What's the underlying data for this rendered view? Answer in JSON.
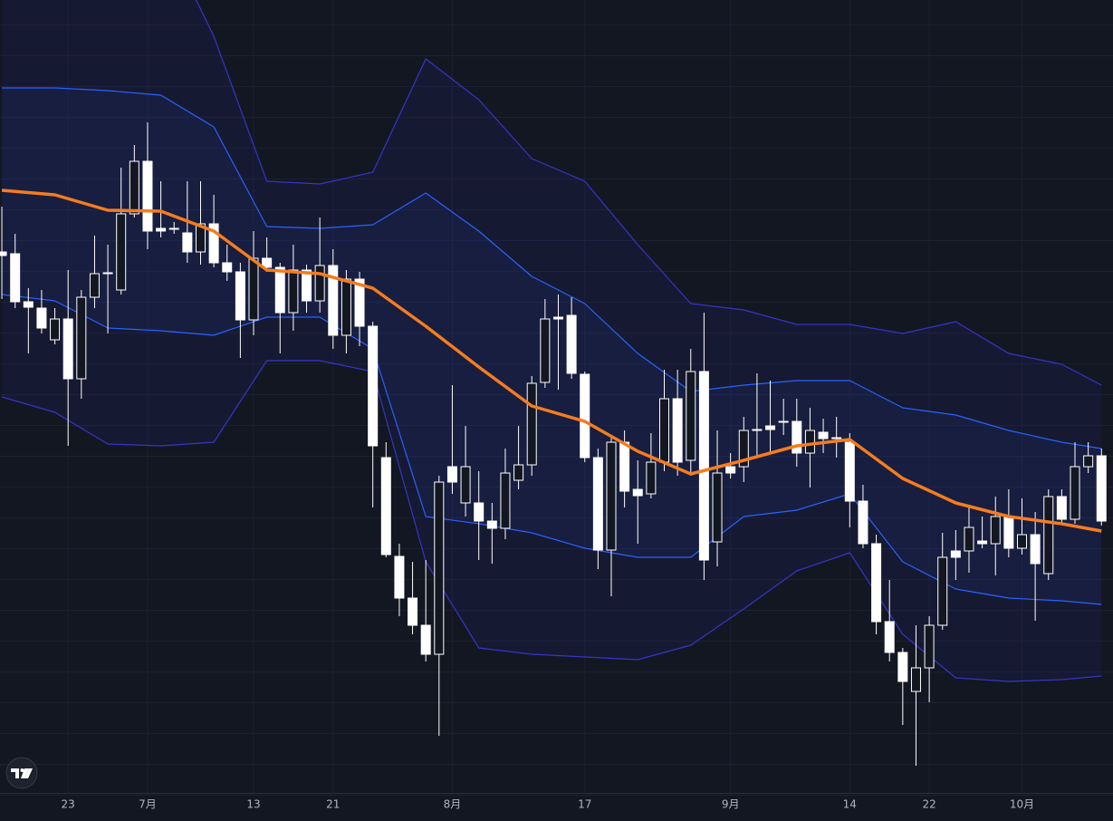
{
  "chart_data": {
    "type": "candlestick",
    "categories": [
      null,
      null,
      null,
      null,
      null,
      "23",
      null,
      null,
      null,
      null,
      null,
      "7月",
      null,
      null,
      null,
      null,
      null,
      null,
      null,
      "13",
      null,
      null,
      null,
      null,
      null,
      "21",
      null,
      null,
      null,
      null,
      null,
      null,
      null,
      null,
      "8月",
      null,
      null,
      null,
      null,
      null,
      null,
      null,
      null,
      null,
      "17",
      null,
      null,
      null,
      null,
      null,
      null,
      null,
      null,
      null,
      null,
      "9月",
      null,
      null,
      null,
      null,
      null,
      null,
      null,
      null,
      "14",
      null,
      null,
      null,
      null,
      null,
      "22",
      null,
      null,
      null,
      null,
      null,
      null,
      "10月",
      null,
      null,
      null,
      null,
      null,
      null
    ],
    "open": [
      628,
      626,
      573,
      566,
      531,
      554,
      488,
      578,
      605,
      586,
      670,
      728,
      654,
      654,
      649,
      628,
      659,
      616,
      606,
      553,
      621,
      611,
      561,
      608,
      574,
      613,
      536,
      598,
      546,
      401,
      292,
      246,
      216,
      184,
      391,
      351,
      351,
      331,
      323,
      376,
      393,
      484,
      556,
      558,
      493,
      401,
      299,
      418,
      366,
      361,
      396,
      466,
      398,
      496,
      308,
      391,
      391,
      432,
      436,
      441,
      441,
      406,
      429,
      423,
      418,
      353,
      306,
      220,
      186,
      143,
      169,
      216,
      298,
      298,
      309,
      306,
      336,
      301,
      316,
      273,
      358,
      333,
      391,
      403
    ],
    "high": [
      678,
      648,
      588,
      586,
      566,
      608,
      586,
      646,
      636,
      721,
      746,
      771,
      706,
      661,
      706,
      706,
      691,
      636,
      616,
      651,
      644,
      616,
      636,
      614,
      666,
      631,
      608,
      606,
      551,
      418,
      306,
      286,
      288,
      381,
      481,
      436,
      386,
      351,
      411,
      436,
      491,
      576,
      581,
      578,
      496,
      411,
      426,
      431,
      398,
      428,
      498,
      498,
      521,
      561,
      431,
      406,
      446,
      494,
      486,
      466,
      466,
      456,
      444,
      446,
      428,
      371,
      316,
      266,
      191,
      216,
      226,
      318,
      321,
      346,
      336,
      358,
      366,
      356,
      341,
      366,
      366,
      418,
      418,
      411
    ],
    "low": [
      576,
      566,
      516,
      538,
      526,
      414,
      466,
      566,
      538,
      581,
      666,
      631,
      644,
      648,
      616,
      614,
      611,
      596,
      511,
      536,
      606,
      516,
      541,
      561,
      561,
      521,
      516,
      524,
      346,
      291,
      226,
      206,
      176,
      94,
      361,
      336,
      288,
      284,
      311,
      366,
      381,
      478,
      476,
      488,
      396,
      278,
      248,
      346,
      306,
      356,
      386,
      381,
      381,
      266,
      281,
      378,
      374,
      401,
      406,
      426,
      391,
      368,
      406,
      401,
      324,
      301,
      206,
      176,
      106,
      61,
      131,
      211,
      266,
      274,
      301,
      271,
      291,
      294,
      221,
      266,
      328,
      328,
      384,
      326
    ],
    "close": [
      624,
      573,
      567,
      544,
      554,
      488,
      578,
      604,
      604,
      670,
      728,
      651,
      651,
      653,
      628,
      659,
      616,
      606,
      553,
      621,
      611,
      561,
      608,
      574,
      613,
      536,
      598,
      546,
      414,
      294,
      246,
      216,
      184,
      374,
      374,
      391,
      331,
      323,
      384,
      393,
      483,
      554,
      554,
      494,
      401,
      299,
      418,
      364,
      359,
      396,
      466,
      396,
      496,
      288,
      384,
      384,
      431,
      432,
      432,
      441,
      406,
      431,
      422,
      423,
      353,
      306,
      220,
      186,
      154,
      169,
      216,
      291,
      291,
      324,
      306,
      336,
      301,
      316,
      284,
      358,
      333,
      391,
      403,
      331
    ],
    "overlays": [
      {
        "color": "#3535c8",
        "x": [
          0,
          4,
          8,
          12,
          16,
          20,
          24,
          28,
          32,
          36,
          40,
          44,
          48,
          52,
          56,
          60,
          64,
          68,
          72,
          76,
          80,
          83
        ],
        "values": [
          1156,
          1106,
          1056,
          986,
          866,
          706,
          703,
          716,
          841,
          796,
          731,
          706,
          636,
          571,
          564,
          548,
          548,
          538,
          551,
          516,
          504,
          481
        ]
      },
      {
        "color": "#2962ff",
        "x": [
          0,
          4,
          8,
          12,
          16,
          20,
          24,
          28,
          32,
          36,
          40,
          44,
          48,
          52,
          56,
          60,
          64,
          68,
          72,
          76,
          80,
          83
        ],
        "values": [
          809,
          809,
          806,
          801,
          766,
          656,
          654,
          658,
          693,
          651,
          601,
          571,
          516,
          474,
          481,
          486,
          486,
          456,
          448,
          431,
          418,
          411
        ]
      },
      {
        "color": "#f57c1f",
        "x": [
          0,
          4,
          8,
          12,
          16,
          20,
          24,
          28,
          32,
          36,
          40,
          44,
          48,
          52,
          56,
          60,
          64,
          68,
          72,
          76,
          80,
          83
        ],
        "values": [
          696,
          691,
          674,
          673,
          651,
          608,
          604,
          588,
          546,
          501,
          458,
          441,
          408,
          383,
          398,
          414,
          421,
          378,
          351,
          336,
          328,
          320
        ]
      },
      {
        "color": "#2962ff",
        "x": [
          0,
          4,
          8,
          12,
          16,
          20,
          24,
          28,
          32,
          36,
          40,
          44,
          48,
          52,
          56,
          60,
          64,
          68,
          72,
          76,
          80,
          83
        ],
        "values": [
          581,
          574,
          544,
          541,
          536,
          556,
          556,
          521,
          336,
          328,
          318,
          301,
          291,
          291,
          336,
          343,
          361,
          286,
          256,
          246,
          243,
          239
        ]
      },
      {
        "color": "#3535c8",
        "x": [
          0,
          4,
          8,
          12,
          16,
          20,
          24,
          28,
          32,
          36,
          40,
          44,
          48,
          52,
          56,
          60,
          64,
          68,
          72,
          76,
          80,
          83
        ],
        "values": [
          468,
          451,
          416,
          414,
          418,
          508,
          508,
          496,
          286,
          191,
          184,
          181,
          178,
          194,
          234,
          276,
          296,
          206,
          158,
          154,
          156,
          160
        ]
      }
    ],
    "up_color": "#131722",
    "down_color": "#ffffff",
    "xlim": [
      -0.14,
      83.87
    ],
    "ylim": [
      31,
      906
    ]
  }
}
